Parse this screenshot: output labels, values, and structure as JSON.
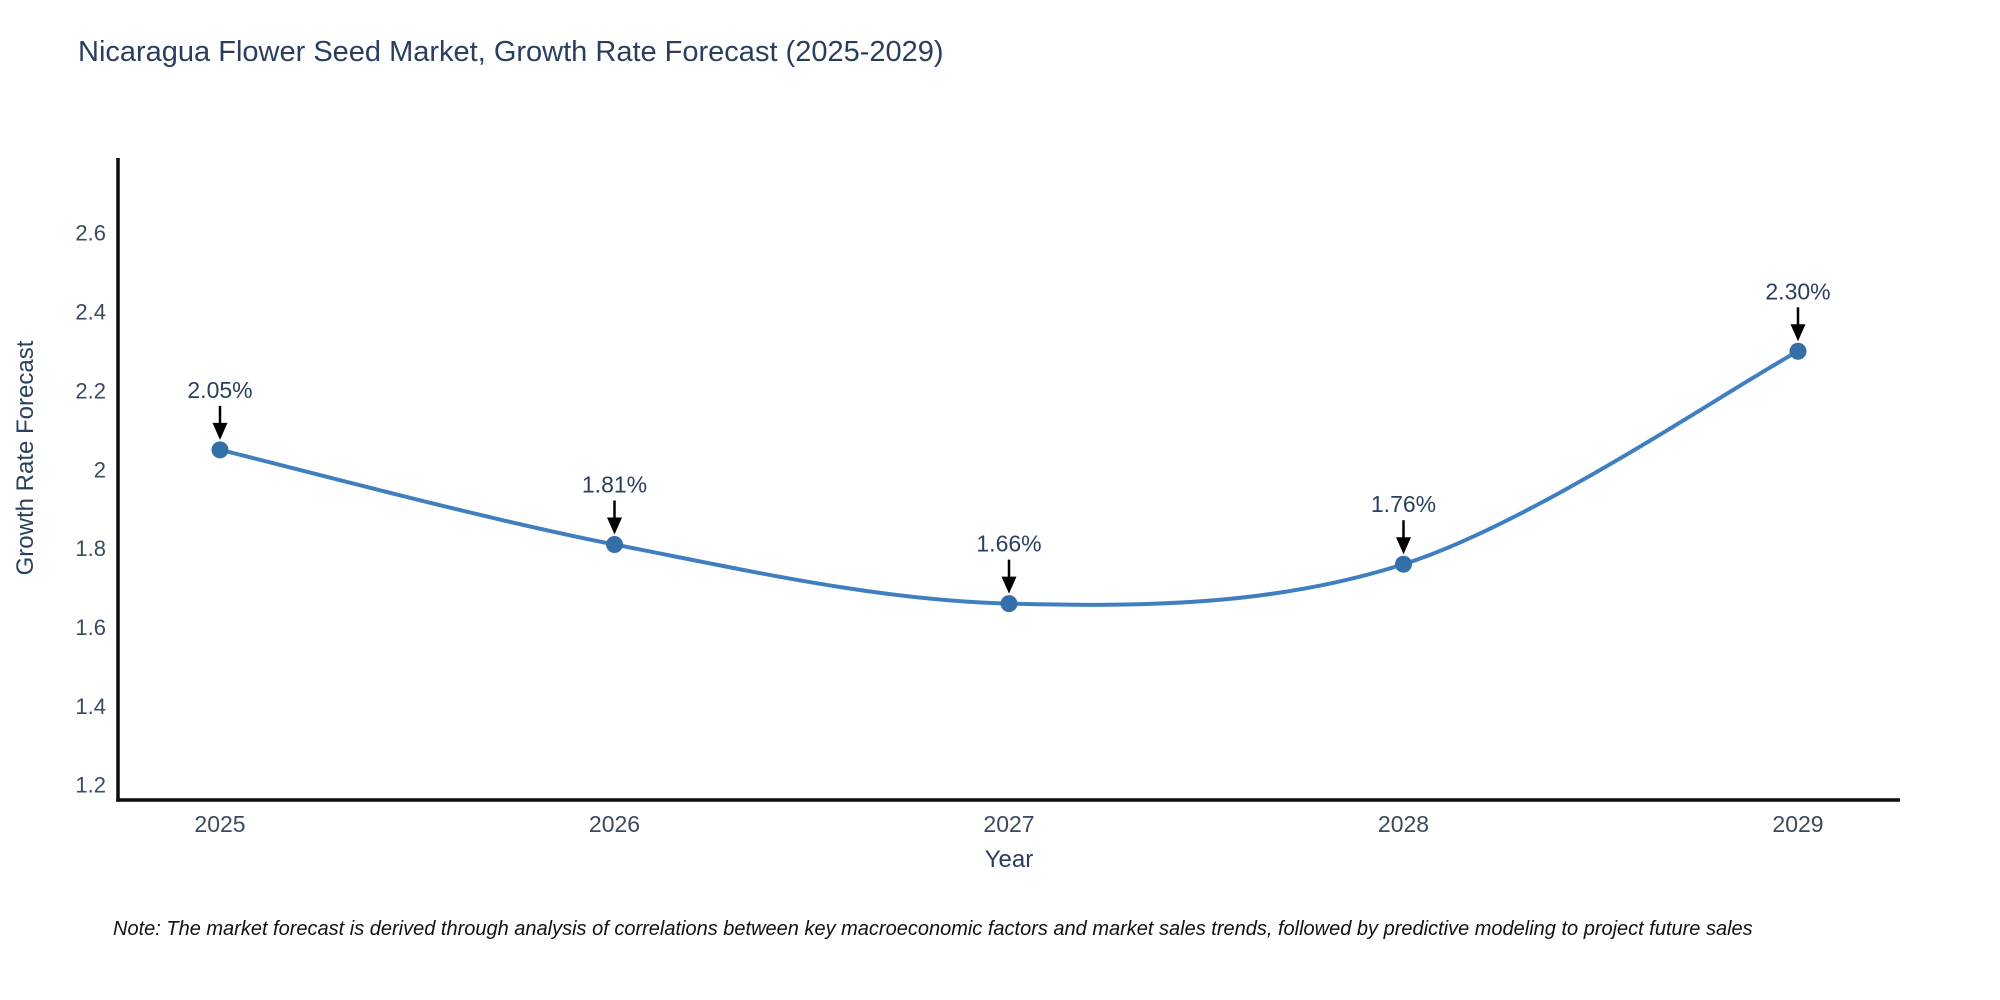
{
  "title": "Nicaragua Flower Seed Market, Growth Rate Forecast (2025-2029)",
  "note": {
    "text": "Note: The market forecast is derived through analysis of correlations between key macroeconomic factors and market sales trends, followed by predictive modeling to project future sales"
  },
  "chart_data": {
    "type": "line",
    "title": "Nicaragua Flower Seed Market, Growth Rate Forecast (2025-2029)",
    "xlabel": "Year",
    "ylabel": "Growth Rate Forecast",
    "x": [
      "2025",
      "2026",
      "2027",
      "2028",
      "2029"
    ],
    "series": [
      {
        "name": "Growth Rate Forecast",
        "values": [
          2.05,
          1.81,
          1.66,
          1.76,
          2.3
        ]
      }
    ],
    "point_labels": [
      "2.05%",
      "1.81%",
      "1.66%",
      "1.76%",
      "2.30%"
    ],
    "ytick_labels": [
      "1.2",
      "1.4",
      "1.6",
      "1.8",
      "2",
      "2.2",
      "2.4",
      "2.6"
    ],
    "ylim": [
      1.16,
      2.79
    ],
    "grid": false,
    "legend": "none",
    "line_shape": "spline",
    "annotations": "black down arrows pointing at each data point",
    "colors": {
      "line": "#3f7fbf",
      "marker": "#356fa8",
      "axis": "#0d0d0d",
      "tick_label": "#3b4a5f",
      "annotation": "#2a3f5f",
      "arrow": "#000000"
    }
  }
}
